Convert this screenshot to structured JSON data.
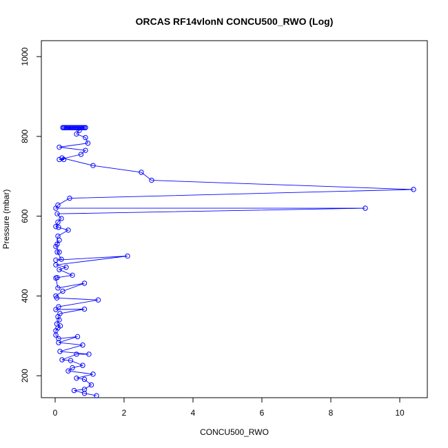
{
  "chart_data": {
    "type": "line",
    "title": "ORCAS RF14vlonN CONCU500_RWO (Log)",
    "xlabel": "CONCU500_RWO",
    "ylabel": "Pressure (mbar)",
    "xlim": [
      -0.4,
      10.8
    ],
    "ylim": [
      1040,
      145
    ],
    "y_inverted": true,
    "grid": false,
    "series_color": "#0000ff",
    "x_ticks": [
      0,
      2,
      4,
      6,
      8,
      10
    ],
    "y_ticks": [
      200,
      400,
      600,
      800,
      1000
    ],
    "points": [
      [
        1.2,
        150
      ],
      [
        0.85,
        156
      ],
      [
        0.55,
        163
      ],
      [
        0.85,
        166
      ],
      [
        1.05,
        177
      ],
      [
        0.85,
        191
      ],
      [
        0.62,
        194
      ],
      [
        1.1,
        204
      ],
      [
        0.38,
        212
      ],
      [
        0.5,
        220
      ],
      [
        0.8,
        226
      ],
      [
        0.45,
        238
      ],
      [
        0.2,
        240
      ],
      [
        0.62,
        254
      ],
      [
        0.98,
        254
      ],
      [
        0.14,
        261
      ],
      [
        0.8,
        277
      ],
      [
        0.1,
        283
      ],
      [
        0.65,
        298
      ],
      [
        0.1,
        293
      ],
      [
        0.02,
        302
      ],
      [
        0.02,
        313
      ],
      [
        0.08,
        320
      ],
      [
        0.15,
        325
      ],
      [
        0.05,
        330
      ],
      [
        0.12,
        340
      ],
      [
        0.08,
        348
      ],
      [
        0.14,
        356
      ],
      [
        0.85,
        367
      ],
      [
        0.02,
        366
      ],
      [
        0.1,
        373
      ],
      [
        1.25,
        390
      ],
      [
        0.05,
        395
      ],
      [
        0.02,
        400
      ],
      [
        0.22,
        412
      ],
      [
        0.85,
        432
      ],
      [
        0.08,
        420
      ],
      [
        0.02,
        445
      ],
      [
        0.06,
        446
      ],
      [
        0.5,
        452
      ],
      [
        0.12,
        466
      ],
      [
        0.32,
        472
      ],
      [
        0.02,
        478
      ],
      [
        2.1,
        500
      ],
      [
        0.02,
        490
      ],
      [
        0.18,
        492
      ],
      [
        0.06,
        510
      ],
      [
        0.12,
        510
      ],
      [
        0.02,
        524
      ],
      [
        0.12,
        540
      ],
      [
        0.06,
        530
      ],
      [
        0.08,
        550
      ],
      [
        0.38,
        565
      ],
      [
        0.1,
        572
      ],
      [
        0.02,
        574
      ],
      [
        0.08,
        585
      ],
      [
        0.18,
        594
      ],
      [
        0.06,
        606
      ],
      [
        9.0,
        620
      ],
      [
        0.02,
        620
      ],
      [
        0.08,
        628
      ],
      [
        0.42,
        645
      ],
      [
        10.4,
        667
      ],
      [
        2.8,
        690
      ],
      [
        2.5,
        710
      ],
      [
        1.1,
        727
      ],
      [
        0.2,
        746
      ],
      [
        0.25,
        742
      ],
      [
        0.12,
        742
      ],
      [
        0.75,
        755
      ],
      [
        0.88,
        765
      ],
      [
        0.12,
        773
      ],
      [
        0.95,
        783
      ],
      [
        0.88,
        797
      ],
      [
        0.62,
        806
      ],
      [
        0.7,
        815
      ],
      [
        0.25,
        822
      ],
      [
        0.88,
        822
      ]
    ],
    "cluster": {
      "pressure": 822,
      "x_from": 0.22,
      "x_to": 0.88,
      "count": 20
    }
  }
}
